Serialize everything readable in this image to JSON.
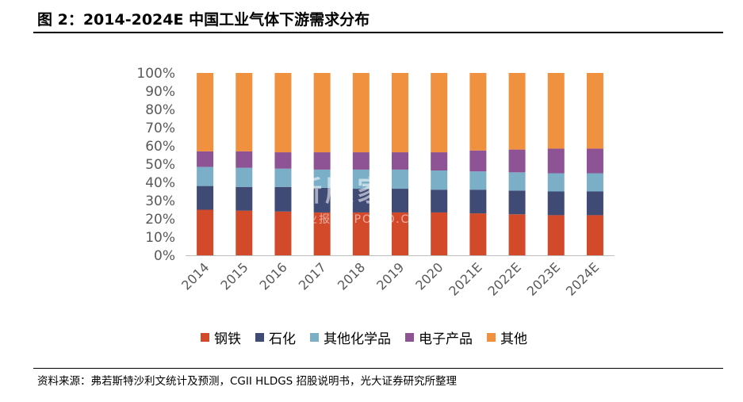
{
  "header": {
    "title": "图 2：2014-2024E 中国工业气体下游需求分布"
  },
  "footer": {
    "source": "资料来源：弗若斯特沙利文统计及预测，CGII HLDGS 招股说明书，光大证券研究所整理"
  },
  "watermark": {
    "main": "新股家",
    "sub": "行业报告 IPOIPO.CN"
  },
  "chart_data": {
    "type": "bar",
    "stacked": true,
    "categories": [
      "2014",
      "2015",
      "2016",
      "2017",
      "2018",
      "2019",
      "2020",
      "2021E",
      "2022E",
      "2023E",
      "2024E"
    ],
    "series": [
      {
        "name": "钢铁",
        "color": "#D24A2A",
        "values": [
          25,
          24.5,
          24,
          23.5,
          23.5,
          23.5,
          23.5,
          23,
          22.5,
          22,
          22
        ]
      },
      {
        "name": "石化",
        "color": "#3F4A75",
        "values": [
          13,
          13,
          13.5,
          13.5,
          13,
          13,
          12.5,
          13,
          13,
          13,
          13
        ]
      },
      {
        "name": "其他化学品",
        "color": "#7AAFC7",
        "values": [
          10.5,
          10.5,
          10,
          10,
          10.5,
          10.5,
          10.5,
          10,
          10,
          10,
          10
        ]
      },
      {
        "name": "电子产品",
        "color": "#8E5394",
        "values": [
          8.5,
          9,
          9,
          9.5,
          9.5,
          9.5,
          10,
          11.5,
          12.5,
          13.5,
          13.5
        ]
      },
      {
        "name": "其他",
        "color": "#F0913F",
        "values": [
          43,
          43,
          43.5,
          43.5,
          43.5,
          43.5,
          43.5,
          42.5,
          42,
          41.5,
          41.5
        ]
      }
    ],
    "yticks": [
      "0%",
      "10%",
      "20%",
      "30%",
      "40%",
      "50%",
      "60%",
      "70%",
      "80%",
      "90%",
      "100%"
    ],
    "ylim": [
      0,
      100
    ],
    "grid": false,
    "legend": "bottom"
  }
}
